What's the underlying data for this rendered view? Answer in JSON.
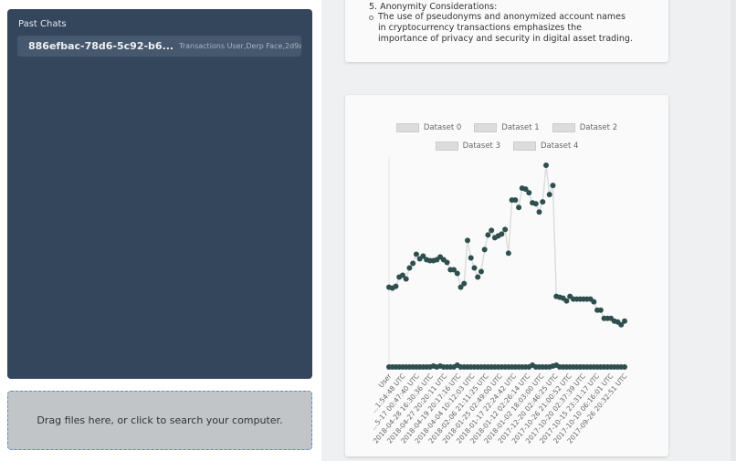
{
  "sidebar": {
    "title": "Past Chats",
    "chats": [
      {
        "id": "886efbac-78d6-5c92-b6...",
        "summary": "Transactions User,Derp Face,2d9a68..."
      }
    ]
  },
  "dropzone": {
    "label": "Drag files here, or click to search your computer."
  },
  "message": {
    "item": "5. Anonymity Considerations:",
    "bullet": "The use of pseudonyms and anonymized account names in cryptocurrency transactions emphasizes the importance of privacy and security in digital asset trading."
  },
  "chart_data": {
    "type": "line",
    "legend": [
      "Dataset 0",
      "Dataset 1",
      "Dataset 2",
      "Dataset 3",
      "Dataset 4"
    ],
    "legend_placement": "top",
    "x_tick_labels": [
      "User",
      "...1:54:48 UTC",
      "...5-17 00:47:40 UTC",
      "2018-04-28 16:30:36 UTC",
      "2018-04-27 20:20:11 UTC",
      "2018-04-19 20:17:16 UTC",
      "2018-04-04 10:12:03 UTC",
      "2018-02-06 21:11:25 UTC",
      "2018-01-25 02:49:00 UTC",
      "2018-01-17 22:24:42 UTC",
      "2018-01-12 02:26:14 UTC",
      "2018-01-02 18:03:00 UTC",
      "2017-12-20 02:46:25 UTC",
      "2017-10-26 21:00:52 UTC",
      "2017-10-20 02:37:39 UTC",
      "2017-10-15 23:31:17 UTC",
      "2017-10-10 06:16:01 UTC",
      "2017-09-26 20:32:51 UTC"
    ],
    "series": [
      {
        "values": [
          87,
          86,
          88,
          98,
          100,
          96,
          108,
          113,
          123,
          118,
          121,
          117,
          116,
          116,
          117,
          120,
          117,
          114,
          106,
          106,
          102,
          87,
          91,
          138,
          119,
          108,
          98,
          104,
          128,
          144,
          149,
          141,
          143,
          145,
          150,
          124,
          182,
          182,
          174,
          195,
          194,
          190,
          179,
          178,
          169,
          180,
          220,
          188,
          198,
          77,
          76,
          75,
          72,
          77,
          74,
          74,
          74,
          74,
          74,
          74,
          71,
          62,
          62,
          53,
          53,
          53,
          50,
          49,
          46,
          50
        ]
      },
      {
        "values": [
          0,
          0,
          0,
          0,
          0,
          0,
          0,
          0,
          0,
          0,
          0,
          0,
          0,
          1,
          0,
          1,
          0,
          0,
          0,
          0,
          2,
          0,
          0,
          0,
          0,
          0,
          0,
          0,
          0,
          0,
          0,
          0,
          0,
          0,
          0,
          0,
          0,
          0,
          0,
          0,
          0,
          0,
          2,
          0,
          0,
          0,
          0,
          0,
          1,
          2,
          0,
          0,
          0,
          0,
          0,
          0,
          0,
          0,
          0,
          0,
          0,
          0,
          0,
          0,
          0,
          0,
          0,
          0,
          0,
          0
        ]
      }
    ],
    "grid": false,
    "y_axis_labels": false,
    "colors": {
      "point": "#2f4f4f",
      "line": "#dddddd"
    }
  }
}
